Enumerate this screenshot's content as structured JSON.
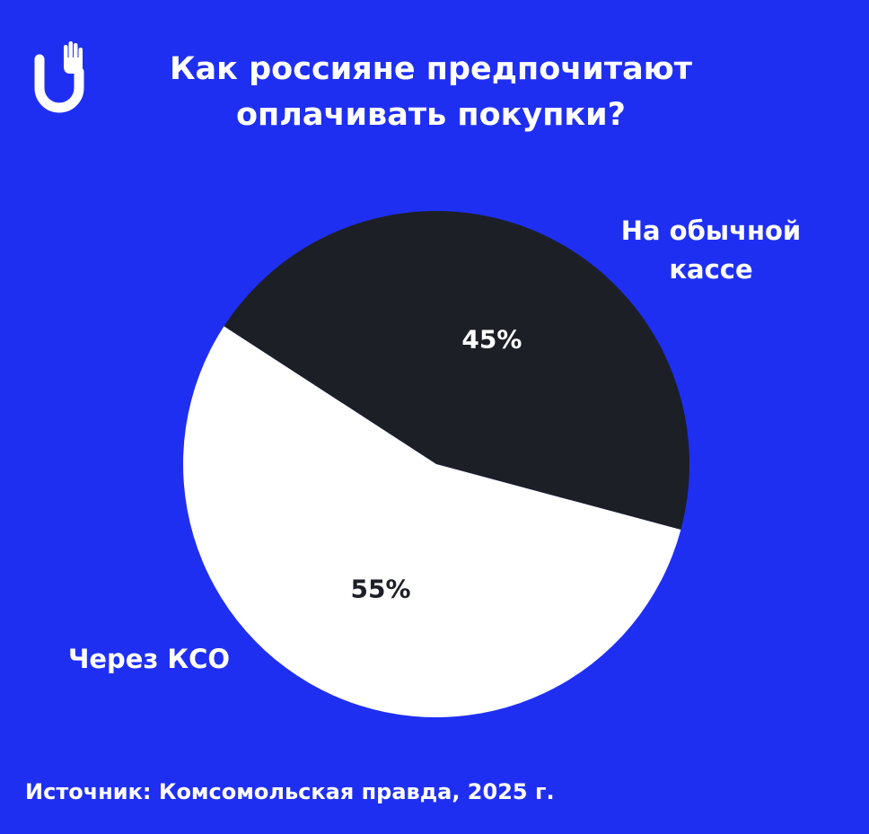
{
  "title_lines": [
    "Как россияне предпочитают",
    "оплачивать покупки?"
  ],
  "source": "Источник: Комсомольская правда, 2025 г.",
  "logo": {
    "icon": "hand-u-logo-icon",
    "color": "#ffffff"
  },
  "colors": {
    "background": "#1f2ff2",
    "text": "#ffffff"
  },
  "chart_data": {
    "type": "pie",
    "title": "Как россияне предпочитают оплачивать покупки?",
    "slices": [
      {
        "label_lines": [
          "На обычной",
          "кассе"
        ],
        "value": 45,
        "value_label": "45%",
        "color": "#1c1f26",
        "value_label_color": "#ffffff"
      },
      {
        "label_lines": [
          "Через КСО"
        ],
        "value": 55,
        "value_label": "55%",
        "color": "#ffffff",
        "value_label_color": "#1c1f26"
      }
    ]
  }
}
